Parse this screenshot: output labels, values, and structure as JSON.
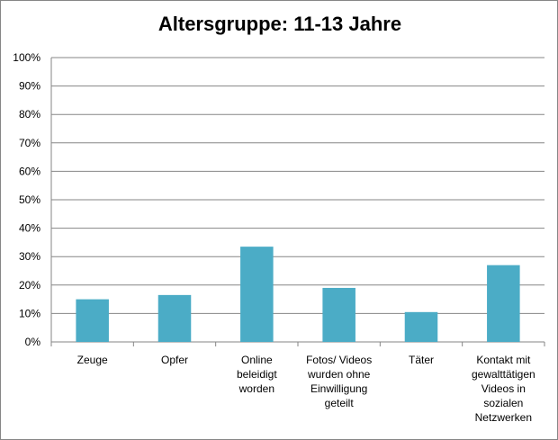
{
  "chart_data": {
    "type": "bar",
    "title": "Altersgruppe: 11-13 Jahre",
    "xlabel": "",
    "ylabel": "",
    "categories": [
      [
        "Zeuge"
      ],
      [
        "Opfer"
      ],
      [
        "Online",
        "beleidigt",
        "worden"
      ],
      [
        "Fotos/ Videos",
        "wurden ohne",
        "Einwilligung",
        "geteilt"
      ],
      [
        "Täter"
      ],
      [
        "Kontakt mit",
        "gewalttätigen",
        "Videos in",
        "sozialen",
        "Netzwerken"
      ]
    ],
    "values": [
      15,
      16.5,
      33.5,
      19,
      10.5,
      27
    ],
    "ylim": [
      0,
      100
    ],
    "yticks": [
      0,
      10,
      20,
      30,
      40,
      50,
      60,
      70,
      80,
      90,
      100
    ],
    "ytick_suffix": "%",
    "grid": true,
    "bar_color": "#4BACC6"
  }
}
